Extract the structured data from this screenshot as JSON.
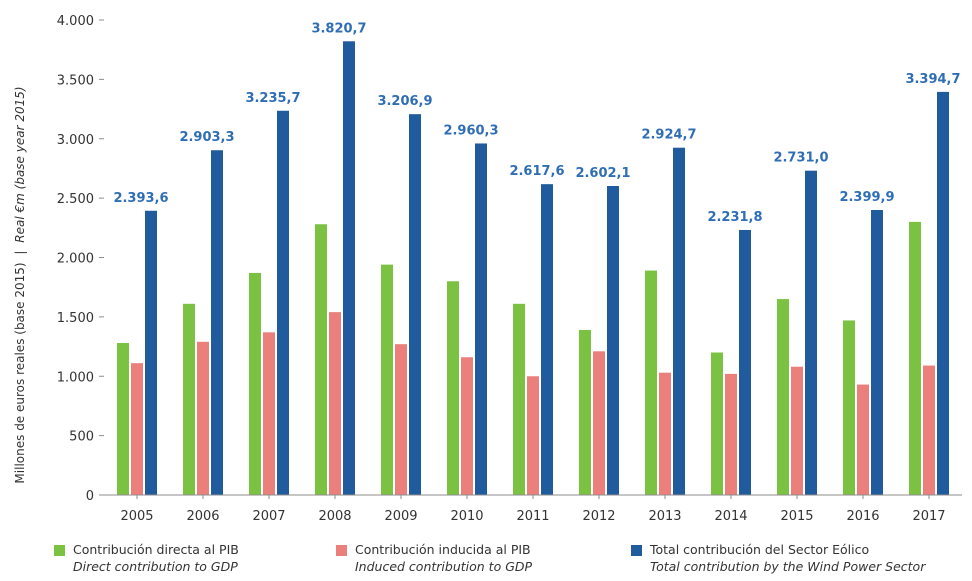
{
  "chart_data": {
    "type": "bar",
    "title": "",
    "ylabel": "Millones de euros reales (base 2015)",
    "ylabel_en": "Real €m (base year 2015)",
    "ylabel_sep": "|",
    "ylim": [
      0,
      4000
    ],
    "yticks": [
      0,
      500,
      1000,
      1500,
      2000,
      2500,
      3000,
      3500,
      4000
    ],
    "ytick_labels": [
      "0",
      "500",
      "1.000",
      "1.500",
      "2.000",
      "2.500",
      "3.000",
      "3.500",
      "4.000"
    ],
    "grid": false,
    "legend_position": "bottom",
    "categories": [
      "2005",
      "2006",
      "2007",
      "2008",
      "2009",
      "2010",
      "2011",
      "2012",
      "2013",
      "2014",
      "2015",
      "2016",
      "2017"
    ],
    "series": [
      {
        "name": "Contribución directa al PIB",
        "name_en": "Direct contribution to GDP",
        "color": "#7cc242",
        "values": [
          1280,
          1610,
          1870,
          2280,
          1940,
          1800,
          1610,
          1390,
          1890,
          1200,
          1650,
          1470,
          2300
        ]
      },
      {
        "name": "Contribución inducida al PIB",
        "name_en": "Induced contribution to GDP",
        "color": "#ea7f7b",
        "values": [
          1110,
          1290,
          1370,
          1540,
          1270,
          1160,
          1000,
          1210,
          1030,
          1020,
          1080,
          930,
          1090
        ]
      },
      {
        "name": "Total contribución del Sector Eólico",
        "name_en": "Total contribution by the Wind Power Sector",
        "color": "#1f5b9d",
        "values": [
          2393.6,
          2903.3,
          3235.7,
          3820.7,
          3206.9,
          2960.3,
          2617.6,
          2602.1,
          2924.7,
          2231.8,
          2731.0,
          2399.9,
          3394.7
        ],
        "labels": [
          "2.393,6",
          "2.903,3",
          "3.235,7",
          "3.820,7",
          "3.206,9",
          "2.960,3",
          "2.617,6",
          "2.602,1",
          "2.924,7",
          "2.231,8",
          "2.731,0",
          "2.399,9",
          "3.394,7"
        ]
      }
    ]
  }
}
